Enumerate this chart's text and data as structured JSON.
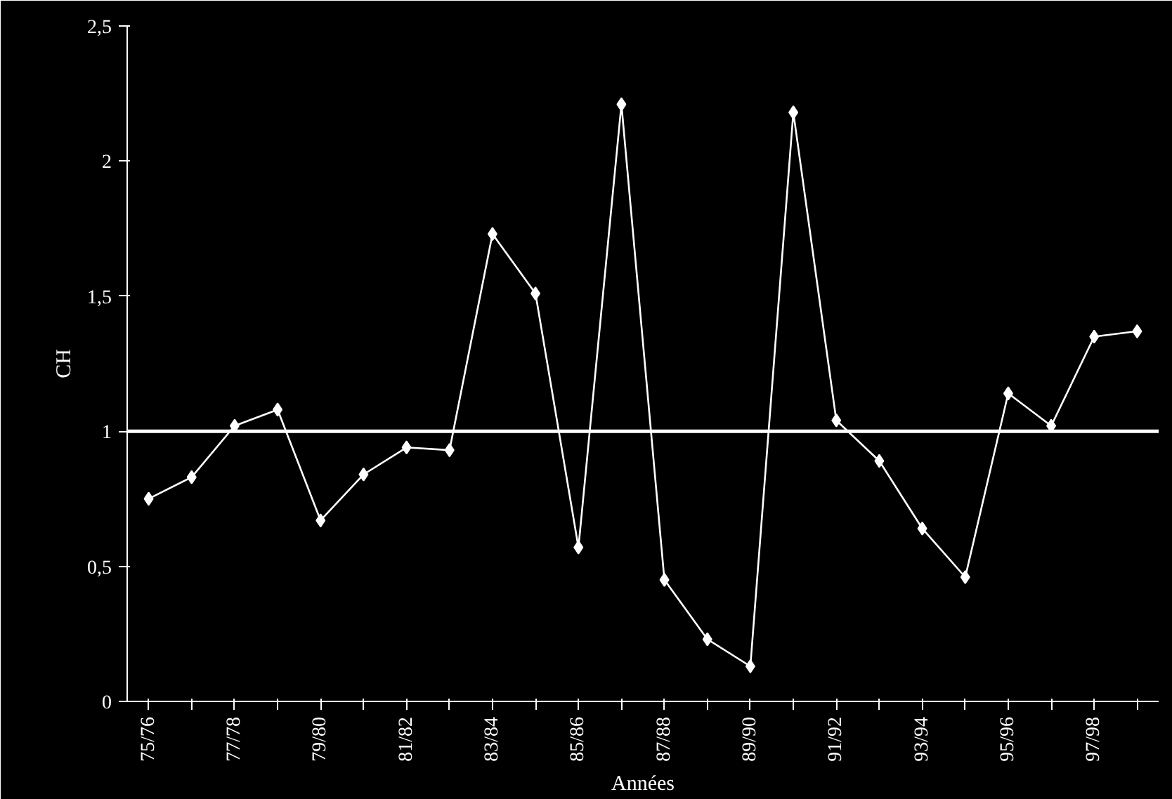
{
  "chart_data": {
    "type": "line",
    "xlabel": "Années",
    "ylabel": "CH",
    "categories": [
      "75/76",
      null,
      "77/78",
      null,
      "79/80",
      null,
      "81/82",
      null,
      "83/84",
      null,
      "85/86",
      null,
      "87/88",
      null,
      "89/90",
      null,
      "91/92",
      null,
      "93/94",
      null,
      "95/96",
      null,
      "97/98",
      null
    ],
    "series": [
      {
        "color": "#ffffff",
        "values": [
          0.75,
          0.83,
          1.02,
          1.08,
          0.67,
          0.84,
          0.94,
          0.93,
          1.73,
          1.51,
          0.57,
          2.21,
          0.45,
          0.23,
          0.13,
          2.18,
          1.04,
          0.89,
          0.64,
          0.46,
          1.14,
          1.02,
          1.35,
          1.37
        ]
      }
    ],
    "ylim": [
      0,
      2.5
    ],
    "yticks": [
      0,
      {
        "value": 0.5,
        "label": "0,5"
      },
      1,
      {
        "value": 1.5,
        "label": "1,5"
      },
      2,
      {
        "value": 2.5,
        "label": "2,5"
      }
    ],
    "ref_lines": [
      {
        "axis": "y",
        "value": 1,
        "color": "#ffffff"
      }
    ],
    "grid": false,
    "marker": "diamond",
    "line_style": "solid"
  }
}
